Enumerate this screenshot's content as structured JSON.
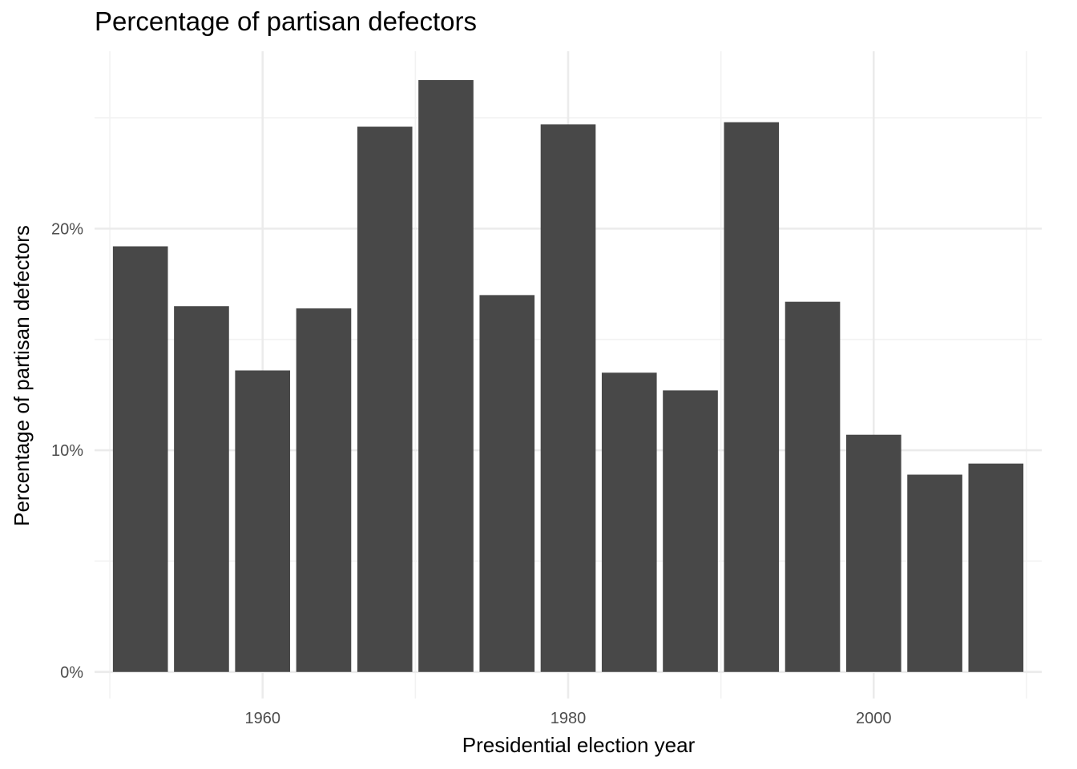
{
  "chart_data": {
    "type": "bar",
    "title": "Percentage of partisan defectors",
    "xlabel": "Presidential election year",
    "ylabel": "Percentage of partisan defectors",
    "x": [
      1952,
      1956,
      1960,
      1964,
      1968,
      1972,
      1976,
      1980,
      1984,
      1988,
      1992,
      1996,
      2000,
      2004,
      2008
    ],
    "values": [
      19.2,
      16.5,
      13.6,
      16.4,
      24.6,
      26.7,
      17.0,
      24.7,
      13.5,
      12.7,
      24.8,
      16.7,
      10.7,
      8.9,
      9.4
    ],
    "xlim": [
      1949,
      2011
    ],
    "ylim": [
      -1.2,
      28.0
    ],
    "x_ticks": [
      1960,
      1980,
      2000
    ],
    "x_tick_labels": [
      "1960",
      "1980",
      "2000"
    ],
    "y_ticks": [
      0,
      10,
      20
    ],
    "y_tick_labels": [
      "0%",
      "10%",
      "20%"
    ],
    "bar_color": "#484848",
    "grid_major_color": "#ebebeb",
    "grid_minor_color": "#f2f2f2",
    "grid": true
  }
}
